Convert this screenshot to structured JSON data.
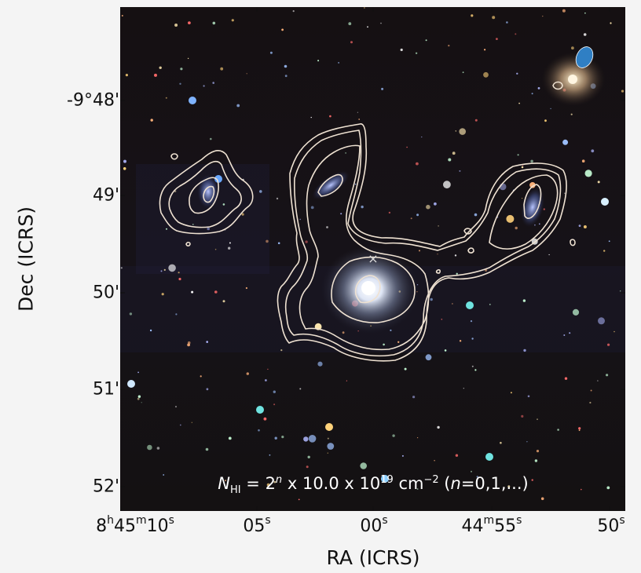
{
  "axes": {
    "x_title": "RA (ICRS)",
    "y_title": "Dec (ICRS)",
    "x_ticks": [
      {
        "parts": [
          [
            "8",
            "h"
          ],
          [
            "45",
            "m"
          ],
          [
            "10",
            "s"
          ]
        ]
      },
      {
        "parts": [
          [
            "05",
            "s"
          ]
        ]
      },
      {
        "parts": [
          [
            "00",
            "s"
          ]
        ]
      },
      {
        "parts": [
          [
            "44",
            "m"
          ],
          [
            "55",
            "s"
          ]
        ]
      },
      {
        "parts": [
          [
            "50",
            "s"
          ]
        ]
      }
    ],
    "y_ticks": [
      "-9°48'",
      "49'",
      "50'",
      "51'",
      "52'"
    ]
  },
  "annotation": {
    "n_symbol": "N",
    "n_sub": "HI",
    "eq": " = 2",
    "exp_n": "n",
    "times": " x 10.0 x 10",
    "exp_19": "19",
    "unit": " cm",
    "exp_unit": "−2",
    "open": " (",
    "n_var": "n",
    "range": "=0,1,...)"
  },
  "colors": {
    "contour": "#efe2d2",
    "beam": "#2f7fc4",
    "sky_background": "#141010",
    "figure_background": "#f4f4f4"
  },
  "symbols": {
    "optical_center_marker": "×"
  }
}
